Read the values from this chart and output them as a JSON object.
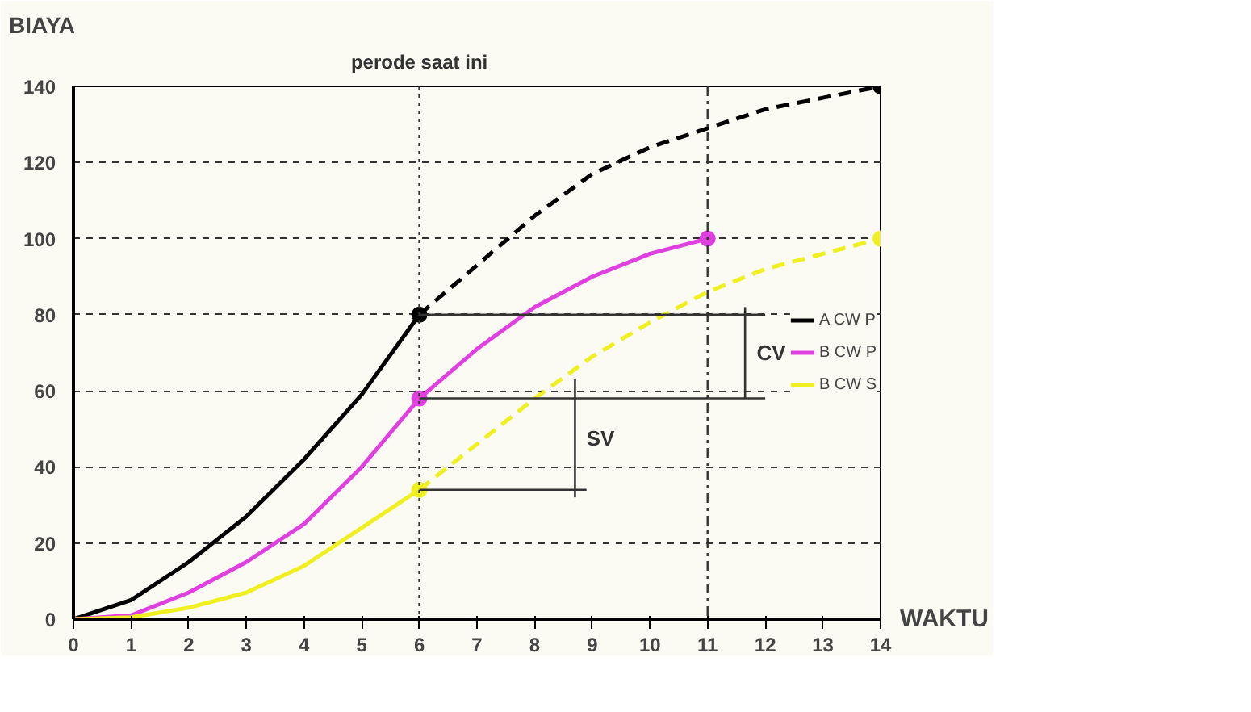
{
  "chart_data": {
    "type": "line",
    "xlabel": "WAKTU",
    "ylabel": "BIAYA",
    "xlim": [
      0,
      14
    ],
    "ylim": [
      0,
      140
    ],
    "xticks": [
      0,
      1,
      2,
      3,
      4,
      5,
      6,
      7,
      8,
      9,
      10,
      11,
      12,
      13,
      14
    ],
    "yticks": [
      0,
      20,
      40,
      60,
      80,
      100,
      120,
      140
    ],
    "grid": "y",
    "legend": "right",
    "series": [
      {
        "name": "A CW P",
        "color": "#000000",
        "x": [
          0,
          1,
          2,
          3,
          4,
          5,
          6
        ],
        "values": [
          0,
          5,
          15,
          27,
          42,
          59,
          80
        ]
      },
      {
        "color": "#000000",
        "line_style": "dashed",
        "x": [
          6,
          7,
          8,
          9,
          10,
          11,
          12,
          13,
          14
        ],
        "values": [
          80,
          93,
          106,
          117,
          124,
          129,
          134,
          137,
          140
        ]
      },
      {
        "name": "B CW P",
        "color": "#e040e0",
        "x": [
          0,
          1,
          2,
          3,
          4,
          5,
          6,
          7,
          8,
          9,
          10,
          11
        ],
        "values": [
          0,
          1,
          7,
          15,
          25,
          40,
          58,
          71,
          82,
          90,
          96,
          100
        ]
      },
      {
        "name": "B CW S",
        "color": "#f0f020",
        "x": [
          0,
          1,
          2,
          3,
          4,
          5,
          6
        ],
        "values": [
          0,
          0.5,
          3,
          7,
          14,
          24,
          34
        ]
      },
      {
        "color": "#f0f020",
        "line_style": "dashed",
        "x": [
          6,
          7,
          8,
          9,
          10,
          11,
          12,
          13,
          14
        ],
        "values": [
          34,
          46,
          58,
          69,
          78,
          86,
          92,
          96,
          100
        ]
      },
      {
        "type": "scatter",
        "color": "#000000",
        "x": [
          6,
          14
        ],
        "values": [
          80,
          140
        ]
      },
      {
        "type": "scatter",
        "color": "#e040e0",
        "x": [
          6,
          11
        ],
        "values": [
          58,
          100
        ]
      },
      {
        "type": "scatter",
        "color": "#f0f020",
        "x": [
          6,
          14
        ],
        "values": [
          34,
          100
        ]
      },
      {
        "color": "#333333",
        "x": [
          6,
          12
        ],
        "values": [
          80,
          80
        ]
      },
      {
        "color": "#333333",
        "x": [
          6,
          12
        ],
        "values": [
          58,
          58
        ]
      },
      {
        "color": "#333333",
        "x": [
          6,
          8.9
        ],
        "values": [
          34,
          34
        ]
      },
      {
        "color": "#333333",
        "x": [
          11.65,
          11.65
        ],
        "values": [
          58,
          82
        ]
      },
      {
        "color": "#333333",
        "x": [
          8.7,
          8.7
        ],
        "values": [
          32,
          63
        ]
      }
    ],
    "ref_lines": [
      {
        "axis": "x",
        "value": 6,
        "label": "perode saat ini",
        "line_style": "dotted"
      },
      {
        "axis": "x",
        "value": 11,
        "line_style": "dashdot"
      }
    ],
    "annotations": [
      "CV",
      "SV"
    ]
  }
}
